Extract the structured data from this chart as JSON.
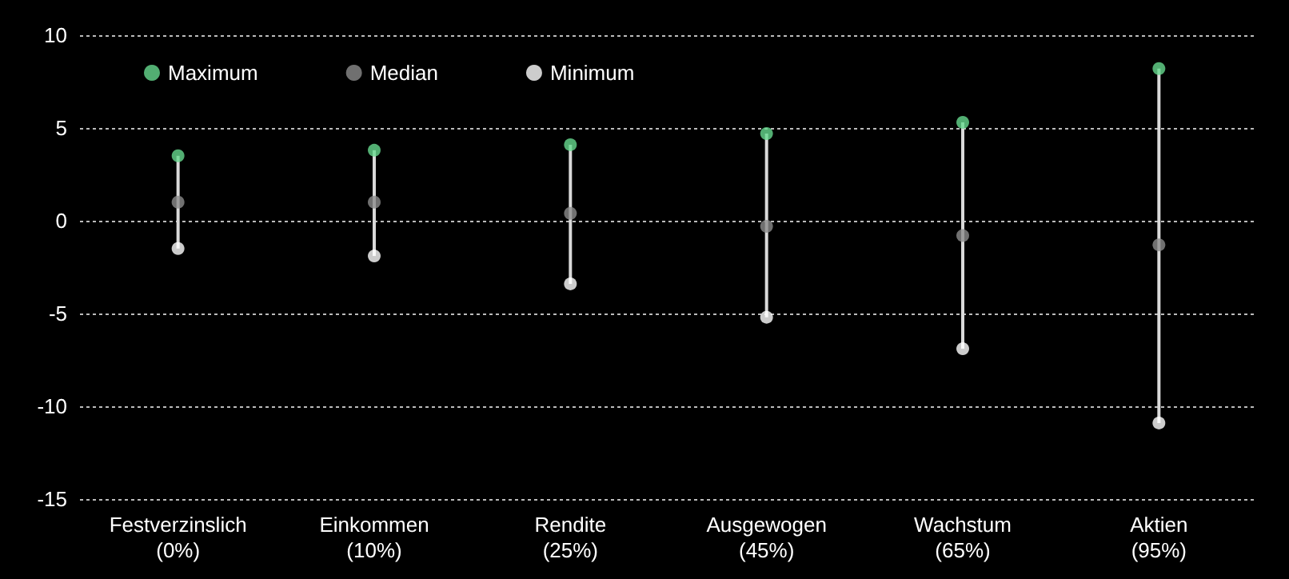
{
  "chart_data": {
    "type": "scatter",
    "categories": [
      "Festverzinslich\n(0%)",
      "Einkommen\n(10%)",
      "Rendite\n(25%)",
      "Ausgewogen\n(45%)",
      "Wachstum\n(65%)",
      "Aktien\n(95%)"
    ],
    "series": [
      {
        "type": "bar",
        "color": "#d9d9d9",
        "base": [
          -1.5,
          -1.9,
          -3.4,
          -5.2,
          -6.9,
          -10.9
        ],
        "values": [
          5.0,
          5.7,
          7.5,
          9.9,
          12.2,
          19.1
        ]
      },
      {
        "name": "Maximum",
        "color": "#66d98e",
        "values": [
          3.5,
          3.8,
          4.1,
          4.7,
          5.3,
          8.2
        ]
      },
      {
        "name": "Median",
        "color": "#8c8c8c",
        "values": [
          1.0,
          1.0,
          0.4,
          -0.3,
          -0.8,
          -1.3
        ]
      },
      {
        "name": "Minimum",
        "color": "#ffffff",
        "values": [
          -1.5,
          -1.9,
          -3.4,
          -5.2,
          -6.9,
          -10.9
        ]
      }
    ],
    "ylim": [
      -15,
      10
    ],
    "yticks": [
      -15,
      -10,
      -5,
      0,
      5,
      10
    ],
    "grid": "y",
    "legend": "top left",
    "marker": "circle"
  }
}
